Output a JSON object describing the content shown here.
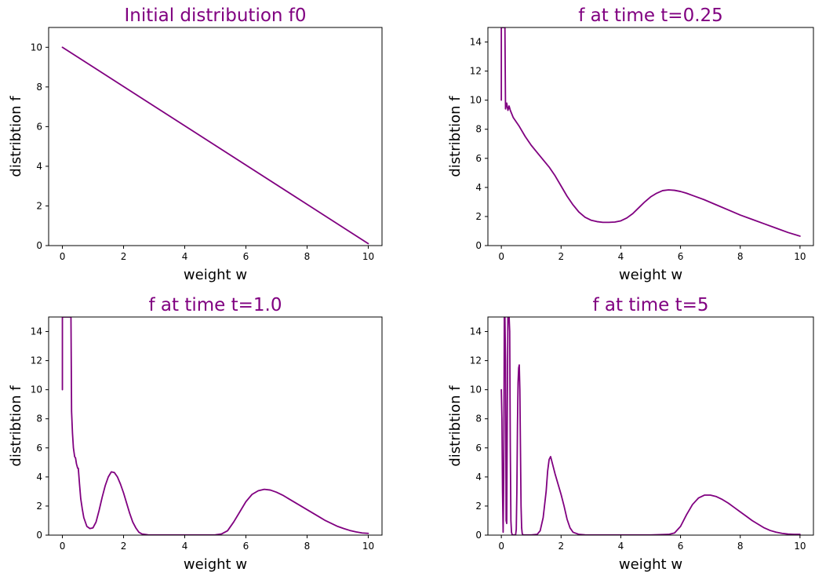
{
  "colors": {
    "accent": "#800080",
    "axis": "#000000",
    "background": "#ffffff"
  },
  "chart_data": [
    {
      "type": "line",
      "title": "Initial distribution f0",
      "xlabel": "weight w",
      "ylabel": "distribtion f",
      "xlim": [
        -0.45,
        10.45
      ],
      "ylim": [
        0,
        11
      ],
      "xticks": [
        0,
        2,
        4,
        6,
        8,
        10
      ],
      "yticks": [
        0,
        2,
        4,
        6,
        8,
        10
      ],
      "grid": false,
      "series": [
        {
          "color": "#800080",
          "x": [
            0,
            10
          ],
          "y": [
            10,
            0.1
          ]
        }
      ]
    },
    {
      "type": "line",
      "title": "f at time t=0.25",
      "xlabel": "weight w",
      "ylabel": "distribtion f",
      "xlim": [
        -0.45,
        10.45
      ],
      "ylim": [
        0,
        15
      ],
      "xticks": [
        0,
        2,
        4,
        6,
        8,
        10
      ],
      "yticks": [
        0,
        2,
        4,
        6,
        8,
        10,
        12,
        14
      ],
      "grid": false,
      "series": [
        {
          "color": "#800080",
          "x": [
            0,
            0,
            0.02,
            0.1,
            0.12,
            0.14,
            0.18,
            0.22,
            0.26,
            0.3,
            0.4,
            0.6,
            0.8,
            1.0,
            1.2,
            1.4,
            1.6,
            1.8,
            2.0,
            2.2,
            2.4,
            2.6,
            2.8,
            3.0,
            3.2,
            3.4,
            3.6,
            3.8,
            4.0,
            4.2,
            4.4,
            4.6,
            4.8,
            5.0,
            5.2,
            5.4,
            5.6,
            5.8,
            6.0,
            6.2,
            6.4,
            6.8,
            7.2,
            7.6,
            8.0,
            8.4,
            8.8,
            9.2,
            9.6,
            10.0
          ],
          "y": [
            10,
            15,
            15,
            15,
            15,
            9.4,
            9.8,
            9.3,
            9.6,
            9.3,
            8.8,
            8.2,
            7.5,
            6.9,
            6.4,
            5.9,
            5.4,
            4.8,
            4.1,
            3.4,
            2.8,
            2.3,
            1.95,
            1.75,
            1.65,
            1.6,
            1.6,
            1.62,
            1.7,
            1.9,
            2.2,
            2.6,
            3.0,
            3.35,
            3.6,
            3.78,
            3.83,
            3.8,
            3.72,
            3.6,
            3.45,
            3.15,
            2.8,
            2.45,
            2.1,
            1.8,
            1.5,
            1.2,
            0.9,
            0.65
          ]
        }
      ]
    },
    {
      "type": "line",
      "title": "f at time t=1.0",
      "xlabel": "weight w",
      "ylabel": "distribtion f",
      "xlim": [
        -0.45,
        10.45
      ],
      "ylim": [
        0,
        15
      ],
      "xticks": [
        0,
        2,
        4,
        6,
        8,
        10
      ],
      "yticks": [
        0,
        2,
        4,
        6,
        8,
        10,
        12,
        14
      ],
      "grid": false,
      "series": [
        {
          "color": "#800080",
          "x": [
            0,
            0,
            0.02,
            0.25,
            0.28,
            0.3,
            0.33,
            0.36,
            0.4,
            0.43,
            0.46,
            0.5,
            0.52,
            0.56,
            0.6,
            0.65,
            0.7,
            0.8,
            0.9,
            1.0,
            1.1,
            1.2,
            1.3,
            1.4,
            1.5,
            1.6,
            1.7,
            1.8,
            1.9,
            2.0,
            2.1,
            2.2,
            2.3,
            2.4,
            2.5,
            2.6,
            2.8,
            3.0,
            3.5,
            4.0,
            4.5,
            5.0,
            5.2,
            5.4,
            5.6,
            5.8,
            6.0,
            6.2,
            6.4,
            6.6,
            6.8,
            7.0,
            7.2,
            7.4,
            7.6,
            7.8,
            8.0,
            8.2,
            8.4,
            8.6,
            8.8,
            9.0,
            9.2,
            9.4,
            9.6,
            9.8,
            10.0
          ],
          "y": [
            10,
            15,
            15,
            15,
            15,
            8.5,
            7.0,
            6.0,
            5.4,
            5.3,
            4.9,
            4.6,
            4.6,
            3.5,
            2.5,
            1.8,
            1.2,
            0.6,
            0.45,
            0.5,
            0.9,
            1.7,
            2.6,
            3.4,
            4.0,
            4.35,
            4.3,
            4.0,
            3.5,
            2.9,
            2.2,
            1.5,
            0.9,
            0.5,
            0.2,
            0.08,
            0.02,
            0.01,
            0.01,
            0.01,
            0.01,
            0.02,
            0.08,
            0.3,
            0.9,
            1.6,
            2.3,
            2.8,
            3.05,
            3.15,
            3.1,
            2.95,
            2.75,
            2.5,
            2.25,
            2.0,
            1.75,
            1.5,
            1.25,
            1.0,
            0.8,
            0.6,
            0.45,
            0.32,
            0.22,
            0.15,
            0.12
          ]
        }
      ]
    },
    {
      "type": "line",
      "title": "f at time t=5",
      "xlabel": "weight w",
      "ylabel": "distribtion f",
      "xlim": [
        -0.45,
        10.45
      ],
      "ylim": [
        0,
        15
      ],
      "xticks": [
        0,
        2,
        4,
        6,
        8,
        10
      ],
      "yticks": [
        0,
        2,
        4,
        6,
        8,
        10,
        12,
        14
      ],
      "grid": false,
      "series": [
        {
          "color": "#800080",
          "x": [
            0,
            0.02,
            0.04,
            0.06,
            0.08,
            0.1,
            0.12,
            0.14,
            0.16,
            0.18,
            0.2,
            0.22,
            0.24,
            0.26,
            0.28,
            0.3,
            0.32,
            0.34,
            0.36,
            0.38,
            0.4,
            0.42,
            0.44,
            0.46,
            0.48,
            0.5,
            0.52,
            0.54,
            0.56,
            0.58,
            0.6,
            0.62,
            0.64,
            0.66,
            0.68,
            0.7,
            0.72,
            0.75,
            0.8,
            1.0,
            1.2,
            1.3,
            1.4,
            1.5,
            1.55,
            1.6,
            1.65,
            1.7,
            1.8,
            1.9,
            2.0,
            2.1,
            2.2,
            2.3,
            2.4,
            2.6,
            2.8,
            3.0,
            4.0,
            5.0,
            5.6,
            5.8,
            6.0,
            6.2,
            6.4,
            6.6,
            6.8,
            7.0,
            7.2,
            7.4,
            7.6,
            7.8,
            8.0,
            8.2,
            8.4,
            8.6,
            8.8,
            9.0,
            9.2,
            9.4,
            9.6,
            9.8,
            10.0
          ],
          "y": [
            10,
            8.0,
            3.0,
            0.2,
            4.0,
            15,
            15,
            12.0,
            1.0,
            0.8,
            9.0,
            15,
            15,
            15,
            14.0,
            6.0,
            1.0,
            0.2,
            0.05,
            0.02,
            0.01,
            0.01,
            0.01,
            0.01,
            0.05,
            0.4,
            3.0,
            7.5,
            10.5,
            11.5,
            11.7,
            10.0,
            6.0,
            2.0,
            0.5,
            0.1,
            0.03,
            0.01,
            0.01,
            0.01,
            0.05,
            0.3,
            1.2,
            3.0,
            4.4,
            5.2,
            5.4,
            5.0,
            4.2,
            3.5,
            2.8,
            2.0,
            1.1,
            0.5,
            0.2,
            0.05,
            0.02,
            0.01,
            0.01,
            0.01,
            0.05,
            0.15,
            0.6,
            1.4,
            2.1,
            2.55,
            2.75,
            2.75,
            2.65,
            2.45,
            2.2,
            1.9,
            1.6,
            1.3,
            1.0,
            0.75,
            0.5,
            0.32,
            0.2,
            0.12,
            0.07,
            0.05,
            0.05
          ]
        }
      ]
    }
  ]
}
